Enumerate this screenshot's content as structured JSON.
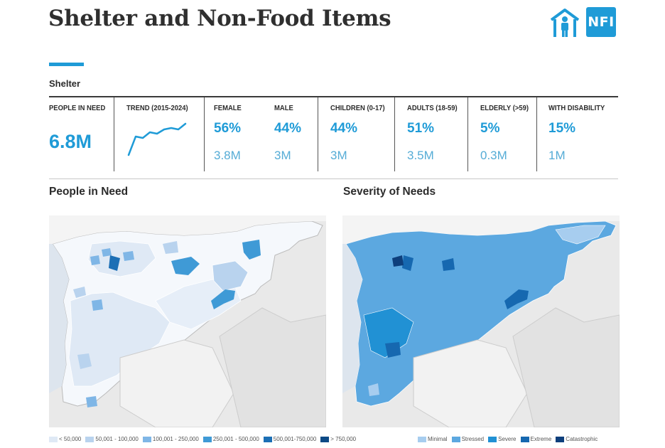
{
  "header": {
    "title": "Shelter and Non-Food Items",
    "icons": [
      "shelter-icon",
      "nfi-icon"
    ],
    "nfi_label": "NFI"
  },
  "section": {
    "label": "Shelter"
  },
  "stats": {
    "people_in_need": {
      "label": "PEOPLE IN NEED",
      "value": "6.8M"
    },
    "trend": {
      "label": "TREND (2015-2024)"
    },
    "female": {
      "label": "FEMALE",
      "pct": "56%",
      "abs": "3.8M"
    },
    "male": {
      "label": "MALE",
      "pct": "44%",
      "abs": "3M"
    },
    "children": {
      "label": "CHILDREN (0-17)",
      "pct": "44%",
      "abs": "3M"
    },
    "adults": {
      "label": "ADULTS (18-59)",
      "pct": "51%",
      "abs": "3.5M"
    },
    "elderly": {
      "label": "ELDERLY (>59)",
      "pct": "5%",
      "abs": "0.3M"
    },
    "disability": {
      "label": "WITH DISABILITY",
      "pct": "15%",
      "abs": "1M"
    }
  },
  "maps": {
    "pin": {
      "heading": "People in Need"
    },
    "severity": {
      "heading": "Severity of Needs"
    }
  },
  "legend_pin": [
    {
      "label": "< 50,000",
      "color": "#dfe9f5"
    },
    {
      "label": "50,001 - 100,000",
      "color": "#b9d3ee"
    },
    {
      "label": "100,001 - 250,000",
      "color": "#7fb6e6"
    },
    {
      "label": "250,001 - 500,000",
      "color": "#3f9ad6"
    },
    {
      "label": "500,001-750,000",
      "color": "#1c6fb5"
    },
    {
      "label": "> 750,000",
      "color": "#0d4a86"
    }
  ],
  "legend_severity": [
    {
      "label": "Minimal",
      "color": "#a7cdef"
    },
    {
      "label": "Stressed",
      "color": "#5ca8e0"
    },
    {
      "label": "Severe",
      "color": "#2191d4"
    },
    {
      "label": "Extreme",
      "color": "#1668b0"
    },
    {
      "label": "Catastrophic",
      "color": "#0e3f7c"
    }
  ],
  "colors": {
    "accent": "#1f9bd7",
    "text": "#2b2b2b"
  }
}
